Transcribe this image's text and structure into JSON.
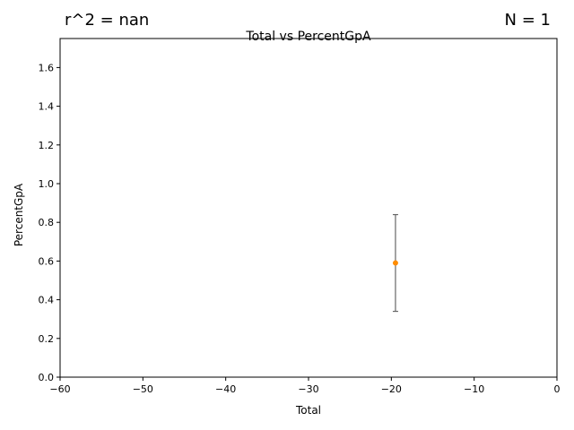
{
  "annotations": {
    "r_squared": "r^2 = nan",
    "n_count": "N = 1"
  },
  "chart_data": {
    "type": "scatter",
    "title": "Total vs PercentGpA",
    "xlabel": "Total",
    "ylabel": "PercentGpA",
    "xlim": [
      -60,
      0
    ],
    "ylim": [
      0,
      1.75
    ],
    "x_ticks": [
      -60,
      -50,
      -40,
      -30,
      -20,
      -10,
      0
    ],
    "x_tick_labels": [
      "−60",
      "−50",
      "−40",
      "−30",
      "−20",
      "−10",
      "0"
    ],
    "y_ticks": [
      0.0,
      0.2,
      0.4,
      0.6,
      0.8,
      1.0,
      1.2,
      1.4,
      1.6
    ],
    "y_tick_labels": [
      "0.0",
      "0.2",
      "0.4",
      "0.6",
      "0.8",
      "1.0",
      "1.2",
      "1.4",
      "1.6"
    ],
    "grid": false,
    "points": [
      {
        "x": -19.5,
        "y": 0.59,
        "err_low": 0.34,
        "err_high": 0.84
      }
    ],
    "point_color": "#ff8c00",
    "errorbar_color": "#666666"
  }
}
